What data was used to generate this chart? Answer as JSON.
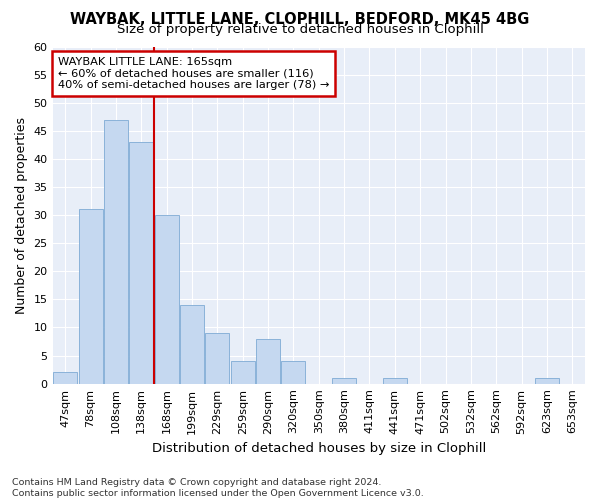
{
  "title1": "WAYBAK, LITTLE LANE, CLOPHILL, BEDFORD, MK45 4BG",
  "title2": "Size of property relative to detached houses in Clophill",
  "xlabel": "Distribution of detached houses by size in Clophill",
  "ylabel": "Number of detached properties",
  "categories": [
    "47sqm",
    "78sqm",
    "108sqm",
    "138sqm",
    "168sqm",
    "199sqm",
    "229sqm",
    "259sqm",
    "290sqm",
    "320sqm",
    "350sqm",
    "380sqm",
    "411sqm",
    "441sqm",
    "471sqm",
    "502sqm",
    "532sqm",
    "562sqm",
    "592sqm",
    "623sqm",
    "653sqm"
  ],
  "values": [
    2,
    31,
    47,
    43,
    30,
    14,
    9,
    4,
    8,
    4,
    0,
    1,
    0,
    1,
    0,
    0,
    0,
    0,
    0,
    1,
    0
  ],
  "bar_color": "#c5d8f0",
  "bar_edge_color": "#7eaad4",
  "vline_x_index": 3.5,
  "vline_color": "#cc0000",
  "annotation_line1": "WAYBAK LITTLE LANE: 165sqm",
  "annotation_line2": "← 60% of detached houses are smaller (116)",
  "annotation_line3": "40% of semi-detached houses are larger (78) →",
  "annotation_box_color": "#cc0000",
  "annotation_box_bg": "#ffffff",
  "ylim": [
    0,
    60
  ],
  "yticks": [
    0,
    5,
    10,
    15,
    20,
    25,
    30,
    35,
    40,
    45,
    50,
    55,
    60
  ],
  "footer": "Contains HM Land Registry data © Crown copyright and database right 2024.\nContains public sector information licensed under the Open Government Licence v3.0.",
  "background_color": "#ffffff",
  "plot_bg_color": "#e8eef8",
  "grid_color": "#ffffff",
  "title_fontsize": 10.5,
  "subtitle_fontsize": 9.5,
  "tick_fontsize": 8,
  "ylabel_fontsize": 9,
  "xlabel_fontsize": 9.5,
  "footer_fontsize": 6.8
}
